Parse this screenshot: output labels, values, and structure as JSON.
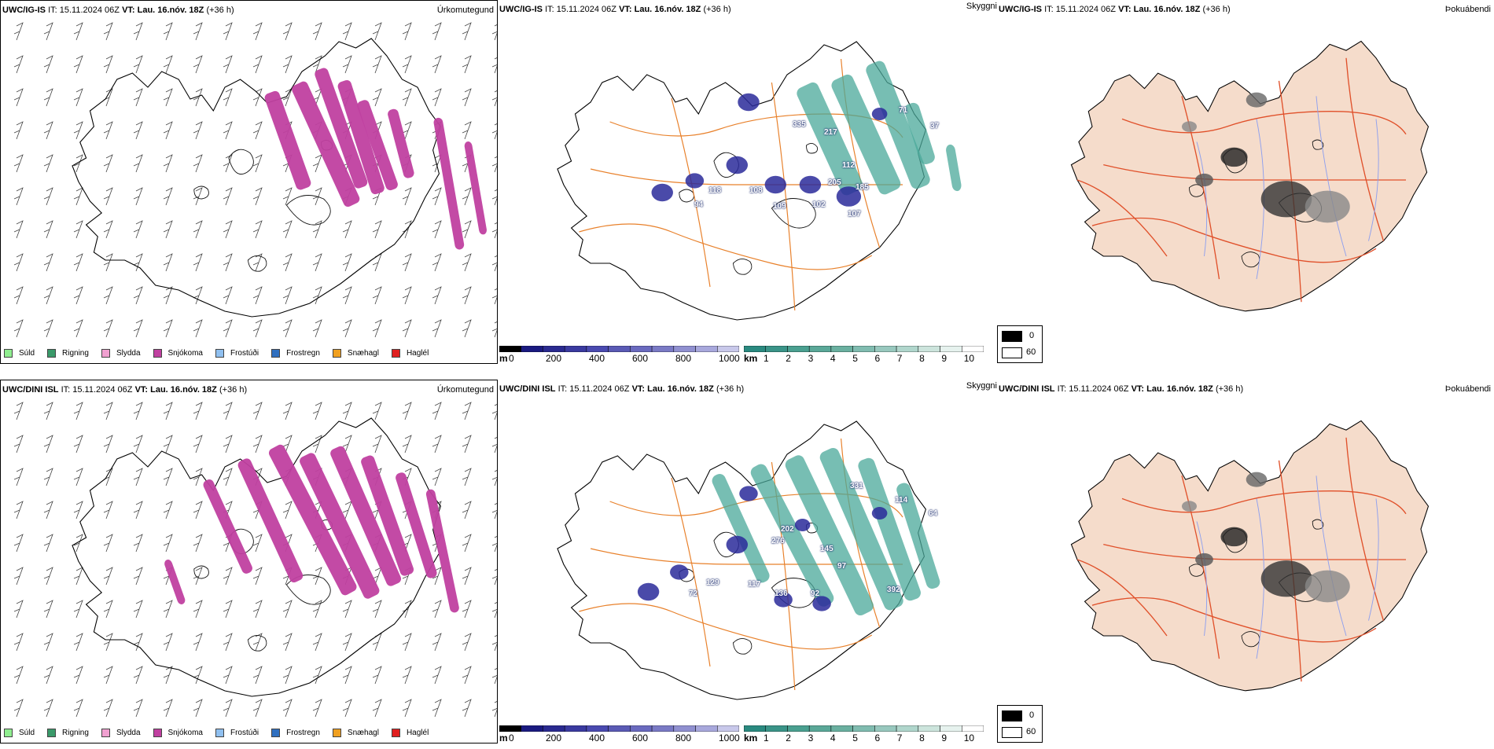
{
  "rows": [
    {
      "model": "UWC/IG-IS",
      "it_label": "IT:",
      "it_value": "15.11.2024 06Z",
      "vt_label": "VT:",
      "vt_value": "Lau. 16.nóv. 18Z",
      "lead": "(+36 h)",
      "cloud_labels": [
        "94",
        "118",
        "108",
        "109",
        "102",
        "107",
        "185",
        "205",
        "112",
        "217",
        "335",
        "37",
        "71"
      ]
    },
    {
      "model": "UWC/DINI ISL",
      "it_label": "IT:",
      "it_value": "15.11.2024 06Z",
      "vt_label": "VT:",
      "vt_value": "Lau. 16.nóv. 18Z",
      "lead": "(+36 h)",
      "cloud_labels": [
        "72",
        "129",
        "117",
        "136",
        "92",
        "97",
        "145",
        "202",
        "276",
        "331",
        "64",
        "114",
        "392"
      ]
    }
  ],
  "panel_titles": {
    "precip_type": "Úrkomutegund",
    "cloud_base": "Skyggni",
    "fog_index": "Þokuábendi"
  },
  "precip_legend": [
    {
      "label": "Súld",
      "color": "#90ee90"
    },
    {
      "label": "Rigning",
      "color": "#3a9a6a"
    },
    {
      "label": "Slydda",
      "color": "#f0a0d0"
    },
    {
      "label": "Snjókoma",
      "color": "#c040a0"
    },
    {
      "label": "Frostúði",
      "color": "#90c0f0"
    },
    {
      "label": "Frostregn",
      "color": "#3070c0"
    },
    {
      "label": "Snæhagl",
      "color": "#f0a020"
    },
    {
      "label": "Haglél",
      "color": "#e02020"
    }
  ],
  "cloud_bar": {
    "unit": "m",
    "ticks": [
      "0",
      "200",
      "400",
      "600",
      "800",
      "1000"
    ],
    "colors": [
      "#000000",
      "#1a1a80",
      "#2a2a90",
      "#3a3aa0",
      "#4a4ab0",
      "#5a5ab5",
      "#6a6abf",
      "#7a7ac5",
      "#9090d0",
      "#a8a8dc",
      "#c8c8ea"
    ]
  },
  "vis_bar": {
    "unit": "km",
    "ticks": [
      "1",
      "2",
      "3",
      "4",
      "5",
      "6",
      "7",
      "8",
      "9",
      "10"
    ],
    "colors": [
      "#2a8a80",
      "#3a9488",
      "#4aa090",
      "#5aa898",
      "#6ab0a0",
      "#80bcb0",
      "#98c8be",
      "#b0d6cc",
      "#cce4dc",
      "#e6f2ee",
      "#ffffff"
    ]
  },
  "fog_bar": {
    "top_label": "0",
    "bottom_label": "60",
    "top_color": "#000000",
    "bottom_color": "#ffffff"
  },
  "colors": {
    "snow": "#c040a0",
    "cloud_blue": "#2a2a9a",
    "vis_teal": "#4aa89a",
    "roads": "#e8802a",
    "fog_land": "#f5dccb",
    "fog_roads": "#e0502a",
    "fog_rivers": "#8fa0ee"
  }
}
